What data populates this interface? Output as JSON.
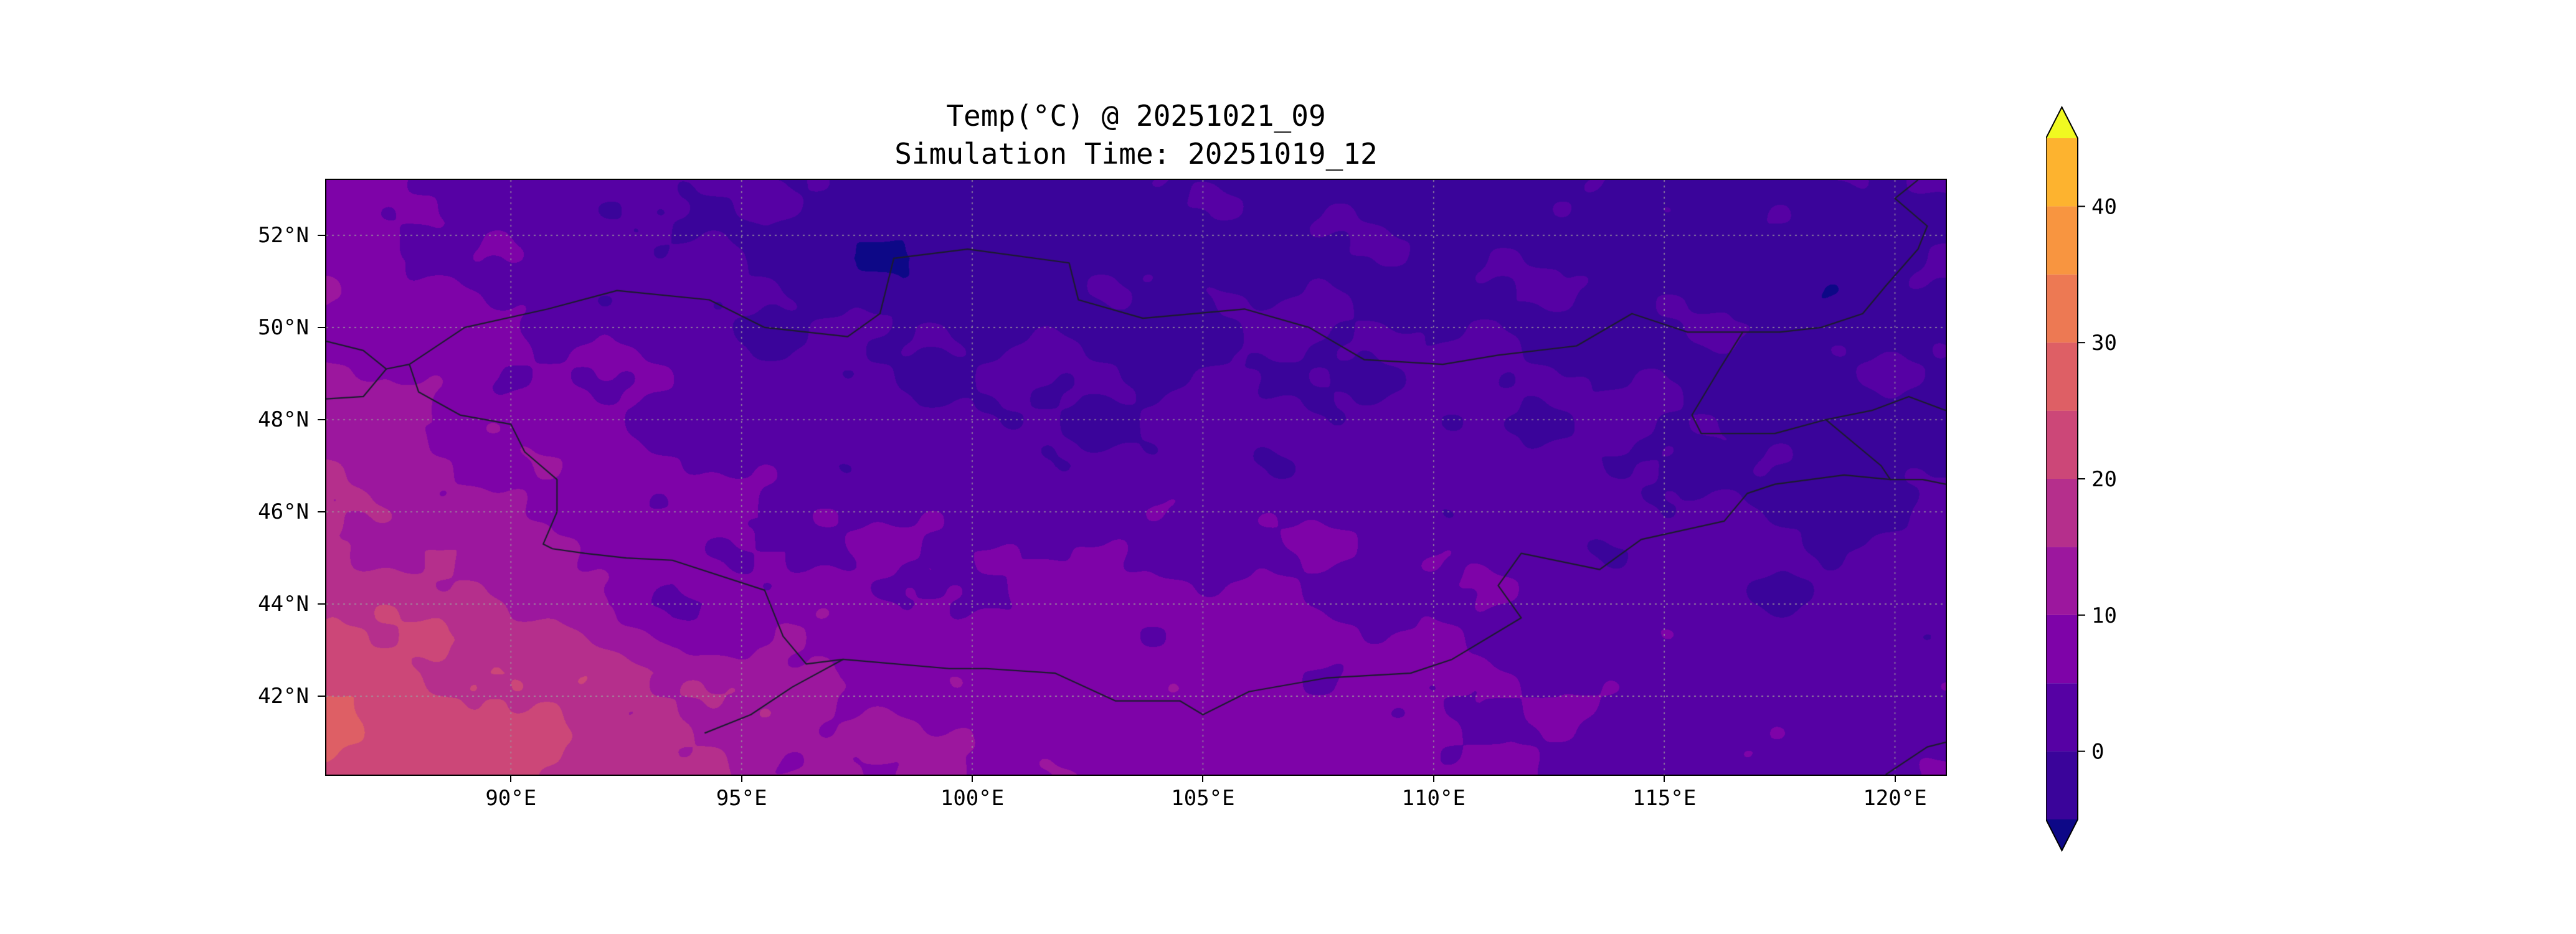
{
  "figure": {
    "title_line1": "Temp(°C) @ 20251021_09",
    "title_line2": "Simulation Time: 20251019_12",
    "background": "#ffffff"
  },
  "chart_data": {
    "type": "heatmap",
    "variable": "Temp(°C)",
    "valid_time": "20251021_09",
    "simulation_time": "20251019_12",
    "title": "Temp(°C) @ 20251021_09",
    "subtitle": "Simulation Time: 20251019_12",
    "xlabel": "",
    "ylabel": "",
    "xlim": [
      86.0,
      121.1
    ],
    "ylim": [
      40.3,
      53.2
    ],
    "grid": true,
    "grid_color": "rgba(158,158,158,0.85)",
    "border_color": "#1c1c2e",
    "xticks": [
      {
        "value": 90,
        "label": "90°E"
      },
      {
        "value": 95,
        "label": "95°E"
      },
      {
        "value": 100,
        "label": "100°E"
      },
      {
        "value": 105,
        "label": "105°E"
      },
      {
        "value": 110,
        "label": "110°E"
      },
      {
        "value": 115,
        "label": "115°E"
      },
      {
        "value": 120,
        "label": "120°E"
      }
    ],
    "yticks": [
      {
        "value": 42,
        "label": "42°N"
      },
      {
        "value": 44,
        "label": "44°N"
      },
      {
        "value": 46,
        "label": "46°N"
      },
      {
        "value": 48,
        "label": "48°N"
      },
      {
        "value": 50,
        "label": "50°N"
      },
      {
        "value": 52,
        "label": "52°N"
      }
    ],
    "x": [
      86,
      88.5,
      91,
      93.5,
      96,
      98.5,
      101,
      103.5,
      106,
      108.5,
      111,
      113.5,
      116,
      118.5,
      121
    ],
    "y": [
      41,
      42.5,
      44,
      45.5,
      47,
      48.5,
      50,
      51.5,
      53
    ],
    "values": [
      [
        26,
        23,
        20,
        16,
        12,
        10,
        9,
        8,
        8,
        7,
        6,
        4,
        3,
        3,
        4
      ],
      [
        23,
        21,
        19,
        15,
        11,
        9,
        8,
        8,
        7,
        6,
        5,
        3,
        2,
        2,
        3
      ],
      [
        19,
        17,
        14,
        3,
        8,
        6,
        6,
        6,
        6,
        5,
        4,
        3,
        2,
        1,
        2
      ],
      [
        16,
        13,
        10,
        7,
        5,
        4,
        4,
        4,
        4,
        4,
        3,
        2,
        1,
        0,
        1
      ],
      [
        14,
        11,
        8,
        5,
        3,
        2,
        1,
        1,
        2,
        2,
        2,
        1,
        0,
        -3,
        0
      ],
      [
        12,
        9,
        6,
        4,
        2,
        1,
        0,
        0,
        0,
        1,
        1,
        0,
        -1,
        -2,
        0
      ],
      [
        10,
        7,
        4,
        2,
        0,
        -1,
        -1,
        -1,
        0,
        0,
        0,
        -1,
        -1,
        -2,
        -1
      ],
      [
        8,
        5,
        3,
        1,
        -2,
        -6,
        -2,
        -2,
        -1,
        -1,
        -1,
        -1,
        -2,
        -3,
        -1
      ],
      [
        6,
        4,
        2,
        1,
        -1,
        -2,
        -2,
        -2,
        -1,
        -1,
        -1,
        -2,
        -2,
        -1,
        1
      ]
    ],
    "levels": [
      -5,
      0,
      5,
      10,
      15,
      20,
      25,
      30,
      35,
      40,
      45
    ],
    "band_colors": [
      "#3a049a",
      "#5601a4",
      "#7e03a8",
      "#9c179e",
      "#b52f8c",
      "#cc4778",
      "#de5f65",
      "#ed7953",
      "#f89540",
      "#fdb32f"
    ],
    "under_color": "#0d0887",
    "over_color": "#f0f921",
    "colorbar_ticks": [
      {
        "value": 0,
        "label": "0"
      },
      {
        "value": 10,
        "label": "10"
      },
      {
        "value": 20,
        "label": "20"
      },
      {
        "value": 30,
        "label": "30"
      },
      {
        "value": 40,
        "label": "40"
      }
    ],
    "borders": [
      [
        [
          87.8,
          49.2
        ],
        [
          89.0,
          50.0
        ],
        [
          90.8,
          50.4
        ],
        [
          92.3,
          50.8
        ],
        [
          94.3,
          50.6
        ],
        [
          95.5,
          50.0
        ],
        [
          97.3,
          49.8
        ],
        [
          98.0,
          50.3
        ],
        [
          98.3,
          51.5
        ],
        [
          99.9,
          51.7
        ],
        [
          102.1,
          51.4
        ],
        [
          102.3,
          50.6
        ],
        [
          103.7,
          50.2
        ],
        [
          105.9,
          50.4
        ],
        [
          107.3,
          50.0
        ],
        [
          108.5,
          49.3
        ],
        [
          110.2,
          49.2
        ],
        [
          111.4,
          49.4
        ],
        [
          113.1,
          49.6
        ],
        [
          114.3,
          50.3
        ],
        [
          115.5,
          49.9
        ],
        [
          116.7,
          49.9
        ],
        [
          116.2,
          49.1
        ],
        [
          115.6,
          48.1
        ],
        [
          115.8,
          47.7
        ],
        [
          117.4,
          47.7
        ],
        [
          118.5,
          48.0
        ],
        [
          119.7,
          47.0
        ],
        [
          119.9,
          46.7
        ],
        [
          118.9,
          46.8
        ],
        [
          117.4,
          46.6
        ],
        [
          116.8,
          46.4
        ],
        [
          116.3,
          45.8
        ],
        [
          114.5,
          45.4
        ],
        [
          113.6,
          44.75
        ],
        [
          111.9,
          45.1
        ],
        [
          111.4,
          44.4
        ],
        [
          111.9,
          43.7
        ],
        [
          110.4,
          42.8
        ],
        [
          109.5,
          42.5
        ],
        [
          107.7,
          42.4
        ],
        [
          106.0,
          42.1
        ],
        [
          105.0,
          41.6
        ],
        [
          104.5,
          41.9
        ],
        [
          103.1,
          41.9
        ],
        [
          101.8,
          42.5
        ],
        [
          100.3,
          42.6
        ],
        [
          99.5,
          42.6
        ],
        [
          97.2,
          42.8
        ],
        [
          96.4,
          42.7
        ],
        [
          95.9,
          43.3
        ],
        [
          95.5,
          44.3
        ],
        [
          93.5,
          44.95
        ],
        [
          92.5,
          45.0
        ],
        [
          91.6,
          45.1
        ],
        [
          90.9,
          45.2
        ],
        [
          90.7,
          45.3
        ],
        [
          91.0,
          46.0
        ],
        [
          91.0,
          46.7
        ],
        [
          90.3,
          47.3
        ],
        [
          90.0,
          47.9
        ],
        [
          88.9,
          48.1
        ],
        [
          88.0,
          48.6
        ],
        [
          87.8,
          49.2
        ]
      ],
      [
        [
          86.0,
          49.7
        ],
        [
          86.8,
          49.5
        ],
        [
          87.3,
          49.1
        ],
        [
          87.8,
          49.2
        ]
      ],
      [
        [
          87.3,
          49.1
        ],
        [
          86.8,
          48.5
        ],
        [
          86.0,
          48.45
        ]
      ],
      [
        [
          116.7,
          49.9
        ],
        [
          117.5,
          49.9
        ],
        [
          118.4,
          50.0
        ],
        [
          119.3,
          50.3
        ],
        [
          119.8,
          50.9
        ],
        [
          120.5,
          51.7
        ],
        [
          120.7,
          52.2
        ],
        [
          120.0,
          52.8
        ],
        [
          120.5,
          53.2
        ]
      ],
      [
        [
          118.5,
          48.0
        ],
        [
          119.5,
          48.2
        ],
        [
          120.3,
          48.5
        ],
        [
          121.1,
          48.2
        ]
      ],
      [
        [
          119.9,
          46.7
        ],
        [
          120.6,
          46.7
        ],
        [
          121.1,
          46.6
        ]
      ],
      [
        [
          97.2,
          42.8
        ],
        [
          96.1,
          42.2
        ],
        [
          95.2,
          41.6
        ],
        [
          94.2,
          41.2
        ]
      ],
      [
        [
          119.8,
          40.3
        ],
        [
          120.7,
          40.9
        ],
        [
          121.1,
          41.0
        ]
      ]
    ]
  }
}
